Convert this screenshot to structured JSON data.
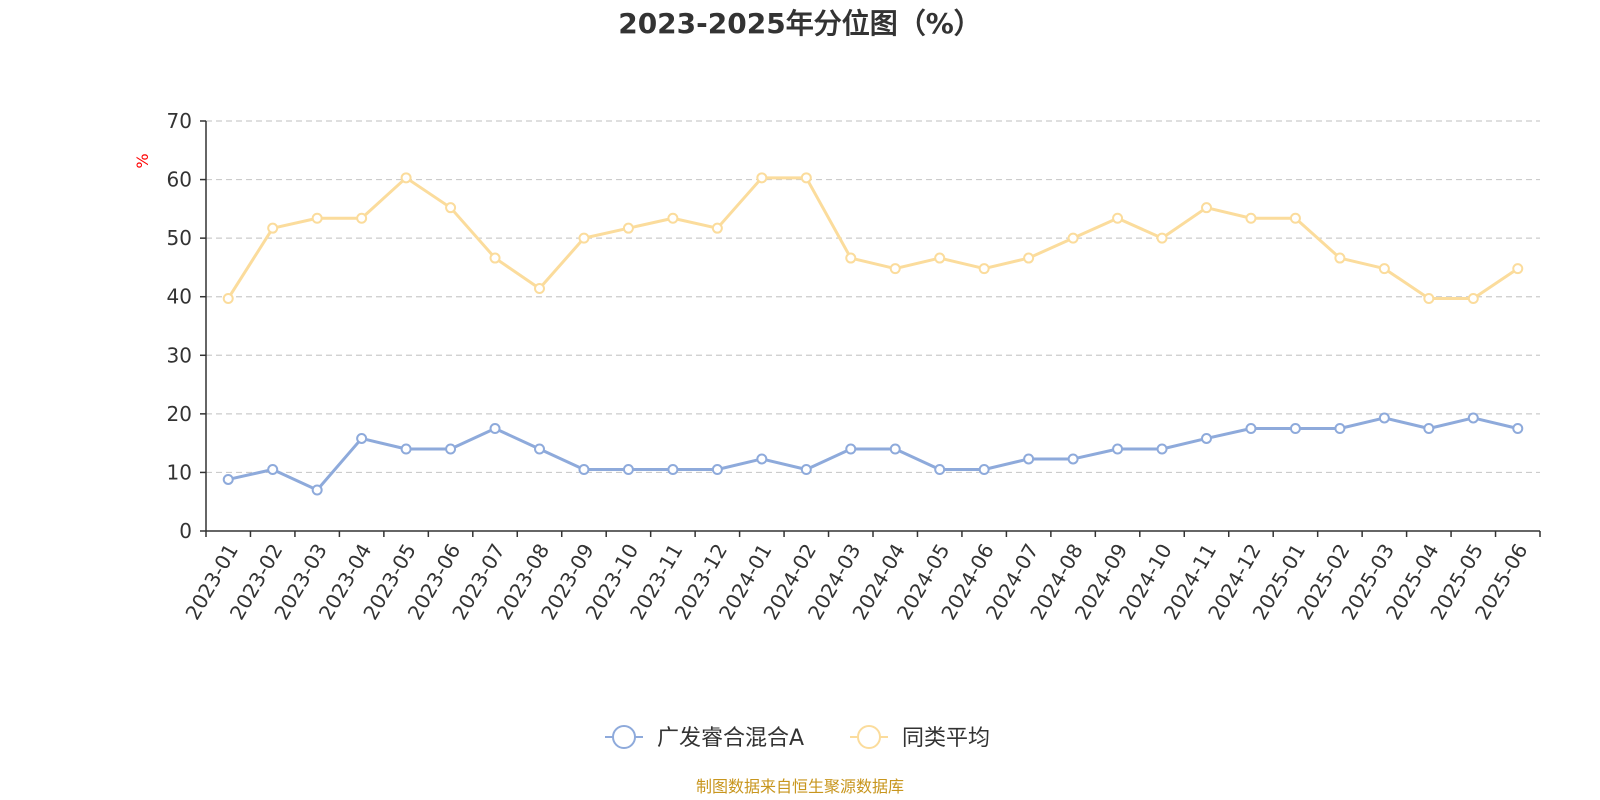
{
  "chart_data": {
    "type": "line",
    "title": "2023-2025年分位图（%）",
    "ylabel": "%",
    "ylim": [
      0,
      70
    ],
    "yticks": [
      0,
      10,
      20,
      30,
      40,
      50,
      60,
      70
    ],
    "grid": true,
    "legend_position": "bottom-center",
    "categories": [
      "2023-01",
      "2023-02",
      "2023-03",
      "2023-04",
      "2023-05",
      "2023-06",
      "2023-07",
      "2023-08",
      "2023-09",
      "2023-10",
      "2023-11",
      "2023-12",
      "2024-01",
      "2024-02",
      "2024-03",
      "2024-04",
      "2024-05",
      "2024-06",
      "2024-07",
      "2024-08",
      "2024-09",
      "2024-10",
      "2024-11",
      "2024-12",
      "2025-01",
      "2025-02",
      "2025-03",
      "2025-04",
      "2025-05",
      "2025-06"
    ],
    "series": [
      {
        "name": "广发睿合混合A",
        "color": "#8eaadb",
        "values": [
          8.8,
          10.5,
          7.0,
          15.8,
          14.0,
          14.0,
          17.5,
          14.0,
          10.5,
          10.5,
          10.5,
          10.5,
          12.3,
          10.5,
          14.0,
          14.0,
          10.5,
          10.5,
          12.3,
          12.3,
          14.0,
          14.0,
          15.8,
          17.5,
          17.5,
          17.5,
          19.3,
          17.5,
          19.3,
          17.5
        ]
      },
      {
        "name": "同类平均",
        "color": "#fbdc9c",
        "values": [
          39.7,
          51.7,
          53.4,
          53.4,
          60.3,
          55.2,
          46.6,
          41.4,
          50.0,
          51.7,
          53.4,
          51.7,
          60.3,
          60.3,
          46.6,
          44.8,
          46.6,
          44.8,
          46.6,
          50.0,
          53.4,
          50.0,
          55.2,
          53.4,
          53.4,
          46.6,
          44.8,
          39.7,
          39.7,
          44.8
        ]
      }
    ],
    "source": "制图数据来自恒生聚源数据库"
  }
}
